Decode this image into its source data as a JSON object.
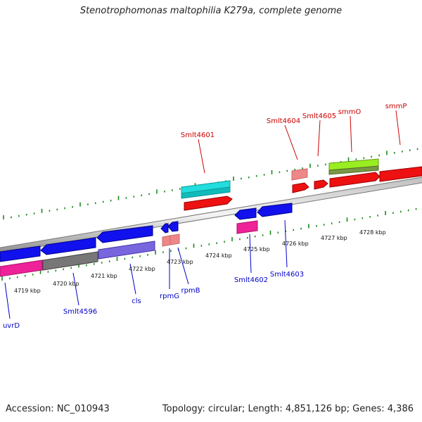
{
  "title": "Stenotrophomonas maltophilia K279a, complete genome",
  "footer": {
    "accession": "Accession: NC_010943",
    "summary": "Topology: circular; Length: 4,851,126 bp; Genes: 4,386"
  },
  "scale_labels": [
    "4719 kbp",
    "4720 kbp",
    "4721 kbp",
    "4722 kbp",
    "4723 kbp",
    "4724 kbp",
    "4725 kbp",
    "4726 kbp",
    "4727 kbp",
    "4728 kbp"
  ],
  "forward_gene_labels": [
    "Smlt4601",
    "Smlt4604",
    "Smlt4605",
    "smmO",
    "smmP"
  ],
  "reverse_gene_labels": [
    "uvrD",
    "Smlt4596",
    "cls",
    "rpmG",
    "rpmB",
    "Smlt4602",
    "Smlt4603"
  ],
  "colors": {
    "forward_label": "#cc0000",
    "reverse_label": "#0000cc",
    "tick": "#1a8a1a",
    "backbone": "#888888",
    "gene_red": "#ee1111",
    "gene_blue": "#1111ee",
    "gene_cyan": "#22dddd",
    "gene_pink": "#ee2299",
    "gene_light_red": "#ee8888",
    "gene_lime": "#99ee22",
    "gene_olive": "#779944",
    "gene_gray": "#777777",
    "gene_purple": "#7766dd"
  }
}
